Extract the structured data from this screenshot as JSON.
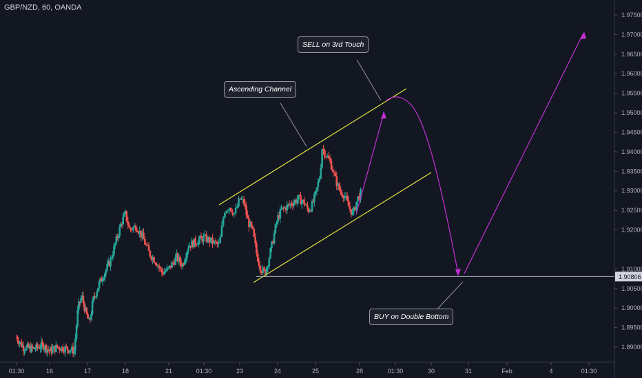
{
  "title": "GBP/NZD, 60, OANDA",
  "chart_data": {
    "type": "candlestick",
    "symbol": "GBP/NZD",
    "interval": "60",
    "source": "OANDA",
    "ylim": [
      1.8875,
      1.9775
    ],
    "y_ticks": [
      "1.97500",
      "1.97000",
      "1.96500",
      "1.96000",
      "1.95500",
      "1.95000",
      "1.94500",
      "1.94000",
      "1.93500",
      "1.93000",
      "1.92500",
      "1.92000",
      "1.91000",
      "1.90500",
      "1.90000",
      "1.89500",
      "1.89000"
    ],
    "x_ticks": [
      {
        "label": "01:30",
        "pos": 0.0
      },
      {
        "label": "16",
        "pos": 1.0
      },
      {
        "label": "17",
        "pos": 2.0
      },
      {
        "label": "18",
        "pos": 3.0
      },
      {
        "label": "21",
        "pos": 4.0
      },
      {
        "label": "01:30",
        "pos": 4.9
      },
      {
        "label": "23",
        "pos": 5.6
      },
      {
        "label": "24",
        "pos": 6.5
      },
      {
        "label": "25",
        "pos": 7.5
      },
      {
        "label": "28",
        "pos": 8.5
      },
      {
        "label": "01:30",
        "pos": 9.2
      },
      {
        "label": "30",
        "pos": 10.2
      },
      {
        "label": "31",
        "pos": 11.1
      },
      {
        "label": "Feb",
        "pos": 12.0
      },
      {
        "label": "4",
        "pos": 13.0
      },
      {
        "label": "01:30",
        "pos": 13.9
      }
    ],
    "price_path": [
      [
        0.0,
        1.8925
      ],
      [
        0.2,
        1.89
      ],
      [
        0.5,
        1.8895
      ],
      [
        0.8,
        1.8905
      ],
      [
        1.0,
        1.889
      ],
      [
        1.2,
        1.89
      ],
      [
        1.5,
        1.8895
      ],
      [
        1.65,
        1.889
      ],
      [
        1.75,
        1.9
      ],
      [
        1.85,
        1.903
      ],
      [
        1.95,
        1.899
      ],
      [
        2.05,
        1.896
      ],
      [
        2.15,
        1.902
      ],
      [
        2.3,
        1.906
      ],
      [
        2.45,
        1.909
      ],
      [
        2.6,
        1.912
      ],
      [
        2.75,
        1.917
      ],
      [
        2.9,
        1.922
      ],
      [
        3.0,
        1.924
      ],
      [
        3.1,
        1.92
      ],
      [
        3.25,
        1.921
      ],
      [
        3.4,
        1.918
      ],
      [
        3.55,
        1.914
      ],
      [
        3.7,
        1.912
      ],
      [
        3.85,
        1.909
      ],
      [
        4.0,
        1.91
      ],
      [
        4.2,
        1.913
      ],
      [
        4.35,
        1.911
      ],
      [
        4.5,
        1.916
      ],
      [
        4.7,
        1.917
      ],
      [
        4.9,
        1.918
      ],
      [
        5.05,
        1.917
      ],
      [
        5.2,
        1.916
      ],
      [
        5.3,
        1.925
      ],
      [
        5.4,
        1.926
      ],
      [
        5.5,
        1.924
      ],
      [
        5.6,
        1.928
      ],
      [
        5.7,
        1.927
      ],
      [
        5.8,
        1.922
      ],
      [
        5.9,
        1.92
      ],
      [
        6.0,
        1.914
      ],
      [
        6.1,
        1.91
      ],
      [
        6.2,
        1.909
      ],
      [
        6.3,
        1.913
      ],
      [
        6.4,
        1.918
      ],
      [
        6.5,
        1.923
      ],
      [
        6.6,
        1.925
      ],
      [
        6.75,
        1.926
      ],
      [
        6.9,
        1.927
      ],
      [
        7.05,
        1.928
      ],
      [
        7.2,
        1.927
      ],
      [
        7.3,
        1.925
      ],
      [
        7.4,
        1.926
      ],
      [
        7.5,
        1.929
      ],
      [
        7.6,
        1.934
      ],
      [
        7.65,
        1.941
      ],
      [
        7.75,
        1.939
      ],
      [
        7.85,
        1.937
      ],
      [
        7.95,
        1.933
      ],
      [
        8.05,
        1.93
      ],
      [
        8.15,
        1.929
      ],
      [
        8.25,
        1.926
      ],
      [
        8.35,
        1.924
      ],
      [
        8.45,
        1.928
      ],
      [
        8.55,
        1.93
      ]
    ],
    "support_level": {
      "value": 1.90806,
      "label": "1.90806"
    },
    "annotations": [
      {
        "text": "SELL on 3rd Touch"
      },
      {
        "text": "Ascending Channel"
      },
      {
        "text": "BUY on  Double Bottom"
      }
    ],
    "colors": {
      "background": "#131722",
      "up": "#26a69a",
      "down": "#ef5350",
      "channel": "#e6e63c",
      "projection": "#c430d6",
      "support": "#b2b5be"
    }
  }
}
